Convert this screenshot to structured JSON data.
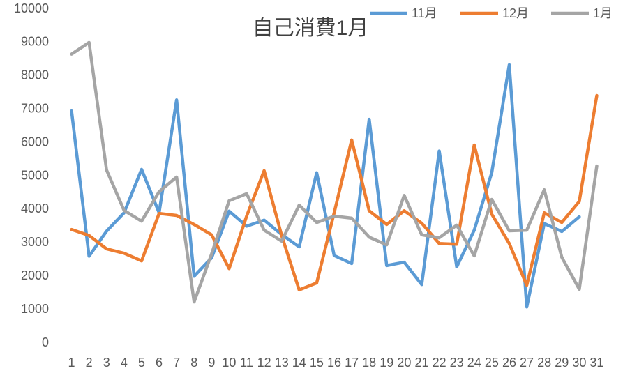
{
  "chart_data": {
    "type": "line",
    "title": "自己消費1月",
    "categories": [
      "1",
      "2",
      "3",
      "4",
      "5",
      "6",
      "7",
      "8",
      "9",
      "10",
      "11",
      "12",
      "13",
      "14",
      "15",
      "16",
      "17",
      "18",
      "19",
      "20",
      "21",
      "22",
      "23",
      "24",
      "25",
      "26",
      "27",
      "28",
      "29",
      "30",
      "31"
    ],
    "series": [
      {
        "name": "11月",
        "color": "#5b9bd5",
        "values": [
          6950,
          2600,
          3350,
          3900,
          5200,
          3900,
          7280,
          2000,
          2550,
          3950,
          3500,
          3680,
          3250,
          2880,
          5100,
          2620,
          2380,
          6700,
          2320,
          2420,
          1750,
          5750,
          2280,
          3380,
          5100,
          8330,
          1080,
          3580,
          3340,
          3780,
          null
        ]
      },
      {
        "name": "12月",
        "color": "#ed7d31",
        "values": [
          3400,
          3220,
          2820,
          2690,
          2460,
          3880,
          3820,
          3550,
          3240,
          2230,
          3800,
          5160,
          3220,
          1590,
          1800,
          3900,
          6080,
          3960,
          3550,
          3960,
          3590,
          2980,
          2960,
          5930,
          3860,
          2980,
          1730,
          3900,
          3610,
          4240,
          7410
        ]
      },
      {
        "name": "1月",
        "color": "#a5a5a5",
        "values": [
          8650,
          9000,
          5180,
          3970,
          3650,
          4530,
          4970,
          1230,
          2670,
          4260,
          4470,
          3380,
          3050,
          4130,
          3610,
          3800,
          3740,
          3170,
          2940,
          4420,
          3240,
          3150,
          3530,
          2610,
          4300,
          3360,
          3380,
          4590,
          2570,
          1610,
          5300
        ]
      }
    ],
    "ylim": [
      0,
      10000
    ],
    "yticks": [
      0,
      1000,
      2000,
      3000,
      4000,
      5000,
      6000,
      7000,
      8000,
      9000,
      10000
    ],
    "grid": false
  }
}
